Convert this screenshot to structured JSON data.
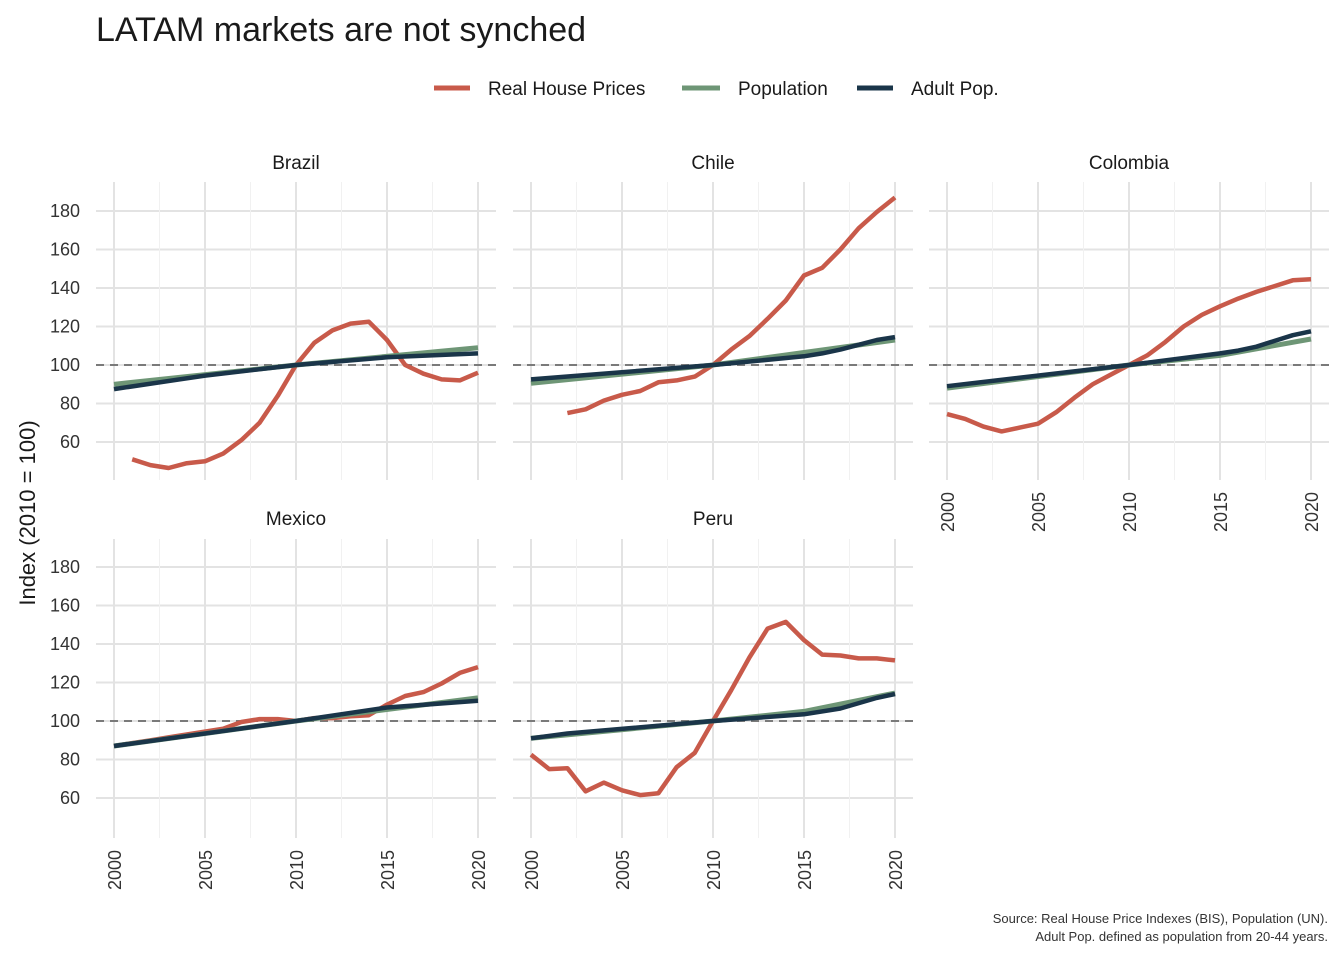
{
  "chart_data": {
    "type": "line",
    "title": "LATAM markets are not synched",
    "ylabel": "Index (2010 = 100)",
    "xlabel": "",
    "reference_line": 100,
    "ylim": [
      40,
      195
    ],
    "xlim": [
      2000,
      2020
    ],
    "yticks": [
      60,
      80,
      100,
      120,
      140,
      160,
      180
    ],
    "xticks": [
      2000,
      2005,
      2010,
      2015,
      2020
    ],
    "grid": true,
    "legend_position": "top",
    "legend": [
      {
        "name": "Real House Prices",
        "color": "#c85a4a"
      },
      {
        "name": "Population",
        "color": "#6e9676"
      },
      {
        "name": "Adult Pop.",
        "color": "#1a3549"
      }
    ],
    "panels": [
      {
        "name": "Brazil",
        "series": [
          {
            "name": "Real House Prices",
            "x": [
              2001,
              2002,
              2003,
              2004,
              2005,
              2006,
              2007,
              2008,
              2009,
              2010,
              2011,
              2012,
              2013,
              2014,
              2015,
              2016,
              2017,
              2018,
              2019,
              2020
            ],
            "values": [
              51,
              48,
              46.5,
              49,
              50,
              54,
              61,
              70,
              84,
              100,
              111.5,
              118,
              121.5,
              122.5,
              113,
              100,
              95.5,
              92.5,
              92,
              96
            ]
          },
          {
            "name": "Population",
            "x": [
              2000,
              2010,
              2020
            ],
            "values": [
              90,
              100,
              109
            ]
          },
          {
            "name": "Adult Pop.",
            "x": [
              2000,
              2005,
              2010,
              2015,
              2020
            ],
            "values": [
              87.5,
              94.5,
              100,
              104,
              106
            ]
          }
        ]
      },
      {
        "name": "Chile",
        "series": [
          {
            "name": "Real House Prices",
            "x": [
              2002,
              2003,
              2004,
              2005,
              2006,
              2007,
              2008,
              2009,
              2010,
              2011,
              2012,
              2013,
              2014,
              2015,
              2016,
              2017,
              2018,
              2019,
              2020
            ],
            "values": [
              75,
              77,
              81.5,
              84.5,
              86.5,
              91,
              92,
              94,
              100,
              108,
              115,
              124,
              133.5,
              146.5,
              150.5,
              160,
              171,
              179.5,
              187
            ]
          },
          {
            "name": "Population",
            "x": [
              2000,
              2010,
              2020
            ],
            "values": [
              90.5,
              100,
              113
            ]
          },
          {
            "name": "Adult Pop.",
            "x": [
              2000,
              2010,
              2015,
              2016,
              2017,
              2018,
              2019,
              2020
            ],
            "values": [
              92.5,
              100,
              104.5,
              106,
              108,
              110.5,
              113,
              114.5
            ]
          }
        ]
      },
      {
        "name": "Colombia",
        "series": [
          {
            "name": "Real House Prices",
            "x": [
              2000,
              2001,
              2002,
              2003,
              2004,
              2005,
              2006,
              2007,
              2008,
              2009,
              2010,
              2011,
              2012,
              2013,
              2014,
              2015,
              2016,
              2017,
              2018,
              2019,
              2020
            ],
            "values": [
              74.5,
              72,
              68,
              65.5,
              67.5,
              69.5,
              75.5,
              83,
              90,
              95,
              100,
              105,
              112,
              120,
              126,
              130.5,
              134.5,
              138,
              141,
              144,
              144.5
            ]
          },
          {
            "name": "Population",
            "x": [
              2000,
              2010,
              2015,
              2020
            ],
            "values": [
              88,
              100,
              105,
              113.5
            ]
          },
          {
            "name": "Adult Pop.",
            "x": [
              2000,
              2010,
              2015,
              2016,
              2017,
              2018,
              2019,
              2020
            ],
            "values": [
              89,
              100,
              106,
              107.5,
              109.5,
              112.5,
              115.5,
              117.5
            ]
          }
        ]
      },
      {
        "name": "Mexico",
        "series": [
          {
            "name": "Real House Prices",
            "x": [
              2000,
              2001,
              2002,
              2003,
              2004,
              2005,
              2006,
              2007,
              2008,
              2009,
              2010,
              2011,
              2012,
              2013,
              2014,
              2015,
              2016,
              2017,
              2018,
              2019,
              2020
            ],
            "values": [
              87,
              88.5,
              90,
              91.5,
              93,
              94.5,
              96,
              99.5,
              101,
              101,
              100,
              101.5,
              101.5,
              102.5,
              103,
              108.5,
              113,
              115,
              119.5,
              125,
              128
            ]
          },
          {
            "name": "Population",
            "x": [
              2000,
              2010,
              2020
            ],
            "values": [
              87,
              100,
              112
            ]
          },
          {
            "name": "Adult Pop.",
            "x": [
              2000,
              2010,
              2015,
              2020
            ],
            "values": [
              87,
              100,
              107,
              110.5
            ]
          }
        ]
      },
      {
        "name": "Peru",
        "series": [
          {
            "name": "Real House Prices",
            "x": [
              2000,
              2001,
              2002,
              2003,
              2004,
              2005,
              2006,
              2007,
              2008,
              2009,
              2010,
              2011,
              2012,
              2013,
              2014,
              2015,
              2016,
              2017,
              2018,
              2019,
              2020
            ],
            "values": [
              82.5,
              75,
              75.5,
              63.5,
              68,
              64,
              61.5,
              62.5,
              76,
              83.5,
              100,
              116,
              133,
              148,
              151.5,
              142,
              134.5,
              134,
              132.5,
              132.5,
              131.5
            ]
          },
          {
            "name": "Population",
            "x": [
              2000,
              2010,
              2015,
              2020
            ],
            "values": [
              91,
              100,
              105,
              114.5
            ]
          },
          {
            "name": "Adult Pop.",
            "x": [
              2000,
              2002,
              2010,
              2015,
              2017,
              2019,
              2020
            ],
            "values": [
              91,
              93.5,
              100,
              103.5,
              106.5,
              112,
              114
            ]
          }
        ]
      }
    ],
    "caption": [
      "Source: Real House Price Indexes (BIS), Population (UN).",
      "Adult Pop. defined as population from 20-44 years."
    ]
  }
}
